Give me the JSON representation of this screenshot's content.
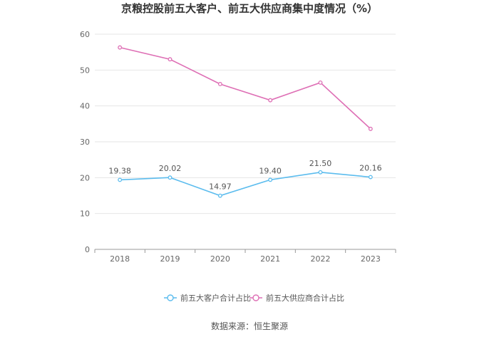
{
  "chart_data": {
    "type": "line",
    "title": "京粮控股前五大客户、前五大供应商集中度情况（%）",
    "xlabel": "",
    "ylabel": "",
    "categories": [
      "2018",
      "2019",
      "2020",
      "2021",
      "2022",
      "2023"
    ],
    "ylim": [
      0,
      60
    ],
    "yticks": [
      0,
      10,
      20,
      30,
      40,
      50,
      60
    ],
    "grid": true,
    "legend_position": "bottom",
    "series": [
      {
        "name": "前五大客户合计占比",
        "color": "#5bbcee",
        "values": [
          19.38,
          20.02,
          14.97,
          19.4,
          21.5,
          20.16
        ],
        "labels": [
          "19.38",
          "20.02",
          "14.97",
          "19.40",
          "21.50",
          "20.16"
        ],
        "show_labels": true
      },
      {
        "name": "前五大供应商合计占比",
        "color": "#de6fb5",
        "values": [
          56.3,
          53.0,
          46.1,
          41.6,
          46.5,
          33.6
        ],
        "show_labels": false
      }
    ]
  },
  "source_text": "数据来源：恒生聚源"
}
